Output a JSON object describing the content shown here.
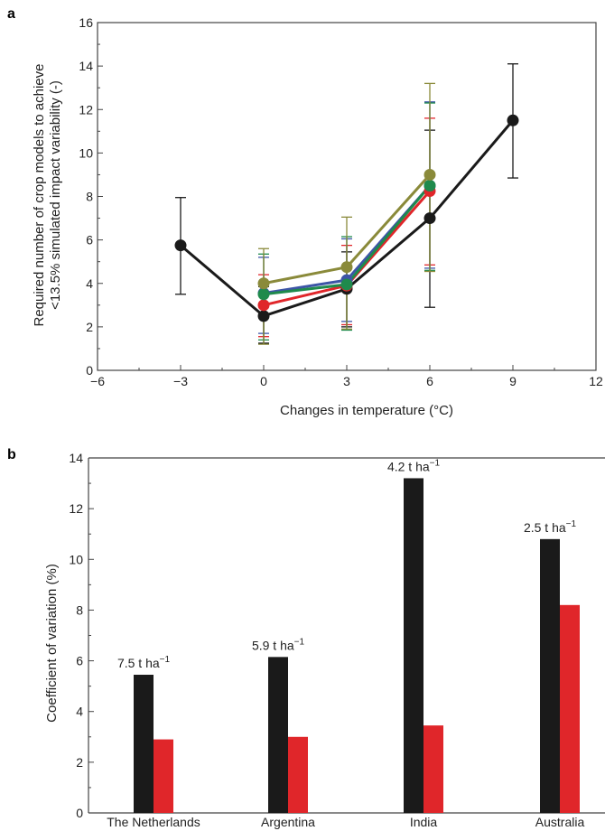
{
  "chart_data": [
    {
      "panel": "a",
      "type": "line",
      "title": "",
      "xlabel": "Changes in temperature (°C)",
      "ylabel": [
        "Required number of crop models to achieve",
        "<13.5% simulated impact variability (-)"
      ],
      "xlim": [
        -6,
        12
      ],
      "ylim": [
        0,
        16
      ],
      "xticks": [
        -6,
        -3,
        0,
        3,
        6,
        9,
        12
      ],
      "yticks": [
        0,
        2,
        4,
        6,
        8,
        10,
        12,
        14,
        16
      ],
      "xtick_labels": [
        "−6",
        "−3",
        "0",
        "3",
        "6",
        "9",
        "12"
      ],
      "grid": false,
      "series": [
        {
          "color": "#1a1a1a",
          "x": [
            -3,
            0,
            3,
            6,
            9
          ],
          "y": [
            5.75,
            2.5,
            3.75,
            7.0,
            11.5
          ],
          "err_low": [
            3.5,
            1.25,
            2.0,
            2.9,
            8.85
          ],
          "err_high": [
            7.95,
            3.85,
            5.45,
            11.05,
            14.1
          ]
        },
        {
          "color": "#e0262a",
          "x": [
            0,
            3,
            6
          ],
          "y": [
            3.0,
            3.9,
            8.25
          ],
          "err_low": [
            1.55,
            2.1,
            4.85
          ],
          "err_high": [
            4.4,
            5.75,
            11.6
          ]
        },
        {
          "color": "#3d55a6",
          "x": [
            0,
            3,
            6
          ],
          "y": [
            3.55,
            4.15,
            8.5
          ],
          "err_low": [
            1.7,
            2.25,
            4.7
          ],
          "err_high": [
            5.2,
            6.05,
            12.35
          ]
        },
        {
          "color": "#1f8a4c",
          "x": [
            0,
            3,
            6
          ],
          "y": [
            3.5,
            3.95,
            8.5
          ],
          "err_low": [
            1.4,
            1.85,
            4.6
          ],
          "err_high": [
            5.35,
            6.15,
            12.3
          ]
        },
        {
          "color": "#8a8a3a",
          "x": [
            0,
            3,
            6
          ],
          "y": [
            4.0,
            4.75,
            9.0
          ],
          "err_low": [
            1.2,
            1.9,
            4.55
          ],
          "err_high": [
            5.6,
            7.05,
            13.2
          ]
        }
      ]
    },
    {
      "panel": "b",
      "type": "bar",
      "title": "",
      "xlabel": "",
      "ylabel": "Coefficient of variation (%)",
      "ylim": [
        0,
        14
      ],
      "yticks": [
        0,
        2,
        4,
        6,
        8,
        10,
        12,
        14
      ],
      "grid": false,
      "categories": [
        "The Netherlands",
        "Argentina",
        "India",
        "Australia"
      ],
      "annotations": [
        "7.5 t ha",
        "5.9 t ha",
        "4.2 t ha",
        "2.5 t ha"
      ],
      "annotation_superscript": "−1",
      "series": [
        {
          "color": "#1a1a1a",
          "values": [
            5.45,
            6.15,
            13.2,
            10.8
          ]
        },
        {
          "color": "#e0262a",
          "values": [
            2.9,
            3.0,
            3.45,
            8.2
          ]
        }
      ]
    }
  ]
}
